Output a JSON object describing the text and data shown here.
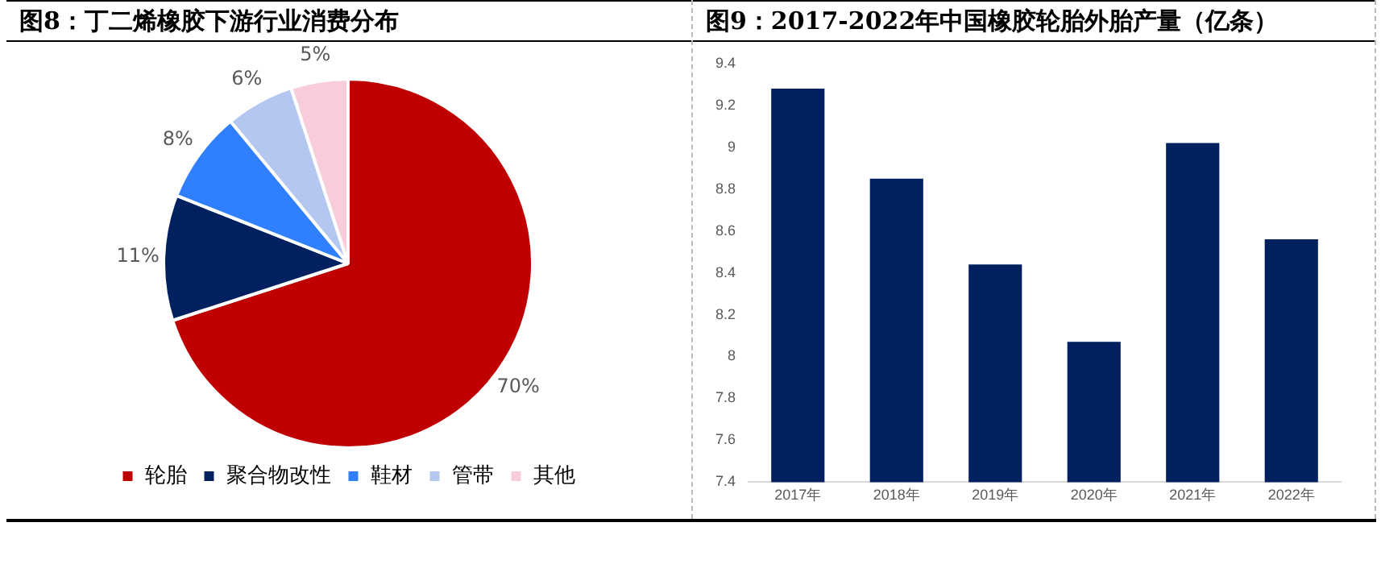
{
  "chart_data": [
    {
      "type": "pie",
      "title": "图8：丁二烯橡胶下游行业消费分布",
      "categories": [
        "轮胎",
        "聚合物改性",
        "鞋材",
        "管带",
        "其他"
      ],
      "values": [
        70,
        11,
        8,
        6,
        5
      ],
      "colors": [
        "#c00000",
        "#002060",
        "#2f7fff",
        "#b4c7f0",
        "#f8ccd8"
      ],
      "value_labels": [
        "70%",
        "11%",
        "8%",
        "6%",
        "5%"
      ],
      "legend": "bottom"
    },
    {
      "type": "bar",
      "title": "图9：2017-2022年中国橡胶轮胎外胎产量（亿条）",
      "categories": [
        "2017年",
        "2018年",
        "2019年",
        "2020年",
        "2021年",
        "2022年"
      ],
      "values": [
        9.28,
        8.85,
        8.44,
        8.07,
        9.02,
        8.56
      ],
      "color": "#002060",
      "ylim": [
        7.4,
        9.4
      ],
      "yticks": [
        {
          "value": 7.4,
          "label": "7.4"
        },
        {
          "value": 7.6,
          "label": "7.6"
        },
        {
          "value": 7.8,
          "label": "7.8"
        },
        {
          "value": 8,
          "label": "8"
        },
        {
          "value": 8.2,
          "label": "8.2"
        },
        {
          "value": 8.4,
          "label": "8.4"
        },
        {
          "value": 8.6,
          "label": "8.6"
        },
        {
          "value": 8.8,
          "label": "8.8"
        },
        {
          "value": 9,
          "label": "9"
        },
        {
          "value": 9.2,
          "label": "9.2"
        },
        {
          "value": 9.4,
          "label": "9.4"
        }
      ],
      "grid": false
    }
  ]
}
